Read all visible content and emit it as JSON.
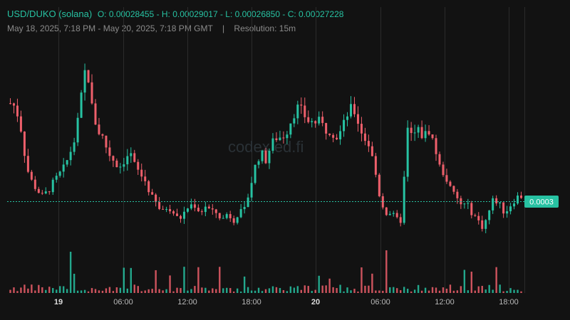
{
  "header": {
    "pair": "USD/DUKO (solana)",
    "ohlc": "O: 0.00028455 - H: 0.00029017 - L: 0.00026850 - C: 0.00027228",
    "range": "May 18, 2025, 7:18 PM - May 20, 2025, 7:18 PM GMT",
    "separator": "|",
    "resolution": "Resolution: 15m"
  },
  "watermark": "codex ed.fi",
  "price_label": "0.0003",
  "colors": {
    "up": "#27c2a2",
    "down": "#ee5f6b",
    "background": "#121212",
    "grid": "#2b2b2b"
  },
  "chart_data": {
    "type": "candlestick",
    "title": "USD/DUKO (solana)",
    "resolution": "15m",
    "x_range": [
      "May 18, 2025 19:18",
      "May 20, 2025 19:18"
    ],
    "x_ticks": [
      "19",
      "06:00",
      "12:00",
      "18:00",
      "20",
      "06:00",
      "12:00",
      "18:00"
    ],
    "y_scale_note": "price axis not labeled except current price",
    "current_price": 0.0003,
    "last_candle": {
      "open": 0.00028455,
      "high": 0.00029017,
      "low": 0.0002685,
      "close": 0.00027228
    },
    "close_series": [
      0.000395,
      0.00039,
      0.00036,
      0.00031,
      0.00029,
      0.00028,
      0.00027,
      0.00028,
      0.00029,
      0.0003,
      0.00031,
      0.00033,
      0.00035,
      0.0004,
      0.00045,
      0.00039,
      0.00036,
      0.00035,
      0.00033,
      0.00032,
      0.00031,
      0.00032,
      0.00033,
      0.00031,
      0.0003,
      0.00029,
      0.00027,
      0.00026,
      0.00025,
      0.00026,
      0.00025,
      0.00024,
      0.00025,
      0.00026,
      0.00026,
      0.00025,
      0.00026,
      0.00025,
      0.00025,
      0.00024,
      0.00025,
      0.00024,
      0.00025,
      0.00025,
      0.00028,
      0.00031,
      0.00033,
      0.00032,
      0.00034,
      0.00035,
      0.00035,
      0.00036,
      0.00038,
      0.00039,
      0.00038,
      0.00037,
      0.00037,
      0.00037,
      0.00036,
      0.00036,
      0.00035,
      0.00036,
      0.00038,
      0.00039,
      0.00037,
      0.00035,
      0.00034,
      0.00031,
      0.00027,
      0.00025,
      0.00025,
      0.00024,
      0.00024,
      0.00036,
      0.00035,
      0.00036,
      0.00035,
      0.00036,
      0.00034,
      0.00031,
      0.0003,
      0.00028,
      0.00027,
      0.00026,
      0.00026,
      0.00025,
      0.00024,
      0.00023,
      0.00025,
      0.00027,
      0.00026,
      0.00025,
      0.00026,
      0.00027,
      0.000272
    ]
  }
}
